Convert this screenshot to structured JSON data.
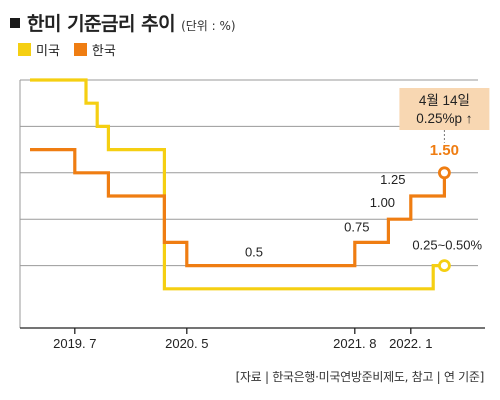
{
  "header": {
    "title": "한미 기준금리 추이",
    "unit": "(단위 : %)"
  },
  "colors": {
    "us": "#f5cf12",
    "kr": "#ef7d12",
    "grid": "#9a9a9a",
    "callout_bg": "#f8d7b2"
  },
  "chart_data": {
    "type": "line",
    "step": true,
    "title": "한미 기준금리 추이",
    "ylabel": "%",
    "ylim": [
      0,
      2.5
    ],
    "xlim": [
      "2019-03",
      "2022-07"
    ],
    "grid": {
      "horizontal": true,
      "vertical": false
    },
    "legend_position": "top-left",
    "x_ticks": [
      {
        "x": "2019-07",
        "label": "2019. 7"
      },
      {
        "x": "2020-05",
        "label": "2020. 5"
      },
      {
        "x": "2021-08",
        "label": "2021. 8"
      },
      {
        "x": "2022-01",
        "label": "2022. 1"
      }
    ],
    "series": [
      {
        "key": "us",
        "name": "미국",
        "points": [
          {
            "x": "2019-03",
            "y": 2.5
          },
          {
            "x": "2019-08",
            "y": 2.25
          },
          {
            "x": "2019-09",
            "y": 2.0
          },
          {
            "x": "2019-10",
            "y": 1.75
          },
          {
            "x": "2020-03",
            "y": 0.25
          },
          {
            "x": "2022-03",
            "y": 0.5
          }
        ],
        "end_marker": {
          "x": "2022-04",
          "y": 0.5
        }
      },
      {
        "key": "kr",
        "name": "한국",
        "points": [
          {
            "x": "2019-03",
            "y": 1.75
          },
          {
            "x": "2019-07",
            "y": 1.5
          },
          {
            "x": "2019-10",
            "y": 1.25
          },
          {
            "x": "2020-03",
            "y": 0.75
          },
          {
            "x": "2020-05",
            "y": 0.5
          },
          {
            "x": "2021-08",
            "y": 0.75
          },
          {
            "x": "2021-11",
            "y": 1.0
          },
          {
            "x": "2022-01",
            "y": 1.25
          },
          {
            "x": "2022-04",
            "y": 1.5
          }
        ],
        "end_marker": {
          "x": "2022-04",
          "y": 1.5
        }
      }
    ],
    "data_labels": [
      {
        "text": "0.5",
        "series": "kr",
        "x": "2020-11",
        "y": 0.5
      },
      {
        "text": "0.75",
        "series": "kr",
        "x": "2021-08",
        "y": 0.75
      },
      {
        "text": "1.00",
        "series": "kr",
        "x": "2021-11",
        "y": 1.0
      },
      {
        "text": "1.25",
        "series": "kr",
        "x": "2022-01",
        "y": 1.25
      },
      {
        "text": "1.50",
        "series": "kr",
        "x": "2022-04",
        "y": 1.5,
        "highlight": true
      },
      {
        "text": "0.25~0.50%",
        "series": "us",
        "x": "2022-03",
        "y": 0.5
      }
    ],
    "annotation": {
      "lines": [
        "4월 14일",
        "0.25%p ↑"
      ],
      "x": "2022-04"
    },
    "source": "[자료 | 한국은행·미국연방준비제도, 참고 | 연 기준]"
  }
}
